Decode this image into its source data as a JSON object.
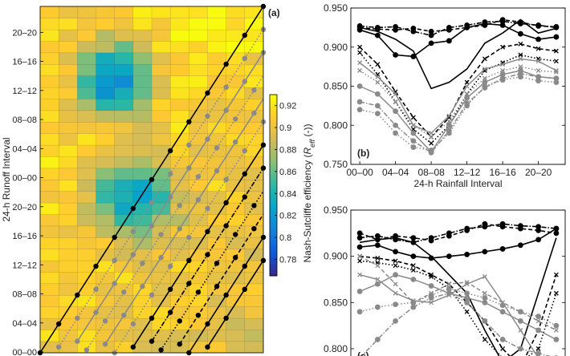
{
  "colors": {
    "colormap": [
      "#352a87",
      "#0f5cdd",
      "#1481d6",
      "#06a4ca",
      "#2eb7a4",
      "#87bf77",
      "#d1bb59",
      "#fec832",
      "#f9fb0e"
    ],
    "black": "#000000",
    "gray": "#8a8a8a"
  },
  "chart_data": [
    {
      "id": "a",
      "type": "heatmap",
      "panel_label": "(a)",
      "ylabel": "24-h Runoff Interval",
      "yticks": [
        "00–00",
        "04–04",
        "08–08",
        "12–12",
        "16–16",
        "20–20",
        "00–00",
        "04–04",
        "08–08",
        "12–12",
        "16–16",
        "20–20"
      ],
      "colorbar": {
        "label": "Nash-Sutcliffe efficiency (R_eff (-))",
        "label_parts": [
          "Nash-Sutcliffe efficiency (",
          "R",
          "eff",
          " (-))"
        ],
        "min": 0.765,
        "max": 0.93,
        "ticks": [
          "0.92",
          "0.9",
          "0.88",
          "0.86",
          "0.84",
          "0.82",
          "0.8",
          "0.78"
        ]
      },
      "rows": 30,
      "cols": 12,
      "rows_visible": 30,
      "diagonals": [
        {
          "offset": 0,
          "style": "solid",
          "color": "black"
        },
        {
          "offset": -2,
          "style": "dotted",
          "color": "gray"
        },
        {
          "offset": -4,
          "style": "solid",
          "color": "gray"
        },
        {
          "offset": -6,
          "style": "dotted",
          "color": "gray"
        },
        {
          "offset": -8,
          "style": "solid",
          "color": "gray"
        },
        {
          "offset": -10,
          "style": "dotted",
          "color": "gray"
        },
        {
          "offset": -12,
          "style": "solid",
          "color": "black"
        },
        {
          "offset": -14,
          "style": "dashdot",
          "color": "black"
        },
        {
          "offset": -16,
          "style": "dotted",
          "color": "black"
        },
        {
          "offset": -18,
          "style": "dashed",
          "color": "black"
        },
        {
          "offset": -20,
          "style": "solid",
          "color": "black"
        },
        {
          "offset": -22,
          "style": "solid",
          "color": "black"
        }
      ]
    },
    {
      "id": "b",
      "type": "line",
      "panel_label": "(b)",
      "xlabel": "24-h Rainfall Interval",
      "ylabel": "",
      "xticks": [
        "00–00",
        "04–04",
        "08–08",
        "12–12",
        "16–16",
        "20–20"
      ],
      "x": [
        0,
        1,
        2,
        3,
        4,
        5,
        6,
        7,
        8,
        9,
        10,
        11
      ],
      "ylim": [
        0.75,
        0.95
      ],
      "yticks": [
        "0.750",
        "0.800",
        "0.850",
        "0.900",
        "0.950"
      ],
      "series": [
        {
          "style": "solid",
          "color": "black",
          "marker": "circle",
          "values": [
            0.922,
            0.915,
            0.89,
            0.888,
            0.905,
            0.908,
            0.925,
            0.93,
            0.928,
            0.917,
            0.91,
            0.913
          ]
        },
        {
          "style": "solid",
          "color": "black",
          "marker": "none",
          "values": [
            0.925,
            0.92,
            0.91,
            0.895,
            0.847,
            0.855,
            0.872,
            0.905,
            0.918,
            0.935,
            0.918,
            0.924
          ]
        },
        {
          "style": "dashdot",
          "color": "black",
          "marker": "circle",
          "values": [
            0.927,
            0.925,
            0.926,
            0.92,
            0.915,
            0.925,
            0.928,
            0.932,
            0.933,
            0.93,
            0.928,
            0.925
          ]
        },
        {
          "style": "dashed",
          "color": "black",
          "marker": "circle",
          "values": [
            0.925,
            0.923,
            0.922,
            0.924,
            0.92,
            0.922,
            0.925,
            0.928,
            0.935,
            0.932,
            0.927,
            0.926
          ]
        },
        {
          "style": "dashed",
          "color": "black",
          "marker": "cross",
          "values": [
            0.9,
            0.878,
            0.843,
            0.81,
            0.785,
            0.81,
            0.855,
            0.885,
            0.9,
            0.904,
            0.898,
            0.895
          ]
        },
        {
          "style": "dotted",
          "color": "black",
          "marker": "cross",
          "values": [
            0.893,
            0.865,
            0.83,
            0.795,
            0.777,
            0.8,
            0.84,
            0.87,
            0.88,
            0.89,
            0.885,
            0.882
          ]
        },
        {
          "style": "solid",
          "color": "gray",
          "marker": "cross",
          "values": [
            0.88,
            0.862,
            0.84,
            0.8,
            0.79,
            0.812,
            0.85,
            0.872,
            0.878,
            0.885,
            0.882,
            0.87
          ]
        },
        {
          "style": "dotted",
          "color": "gray",
          "marker": "cross",
          "values": [
            0.87,
            0.855,
            0.83,
            0.8,
            0.785,
            0.805,
            0.84,
            0.86,
            0.87,
            0.875,
            0.87,
            0.868
          ]
        },
        {
          "style": "solid",
          "color": "gray",
          "marker": "circle",
          "values": [
            0.85,
            0.84,
            0.818,
            0.79,
            0.766,
            0.8,
            0.835,
            0.855,
            0.865,
            0.87,
            0.862,
            0.86
          ]
        },
        {
          "style": "dotted",
          "color": "gray",
          "marker": "circle",
          "values": [
            0.82,
            0.815,
            0.79,
            0.772,
            0.768,
            0.79,
            0.825,
            0.85,
            0.858,
            0.862,
            0.857,
            0.855
          ]
        },
        {
          "style": "dashdot",
          "color": "gray",
          "marker": "circle",
          "values": [
            0.83,
            0.825,
            0.8,
            0.78,
            0.765,
            0.793,
            0.828,
            0.848,
            0.86,
            0.866,
            0.862,
            0.86
          ]
        }
      ]
    },
    {
      "id": "c",
      "type": "line",
      "panel_label": "(c)",
      "xlabel": "",
      "ylabel": "",
      "x": [
        0,
        1,
        2,
        3,
        4,
        5,
        6,
        7,
        8,
        9,
        10,
        11
      ],
      "ylim": [
        0.78,
        0.95
      ],
      "yticks": [
        "0.800",
        "0.850",
        "0.900",
        "0.950"
      ],
      "series": [
        {
          "style": "solid",
          "color": "black",
          "marker": "circle",
          "values": [
            0.91,
            0.912,
            0.905,
            0.9,
            0.898,
            0.9,
            0.902,
            0.905,
            0.908,
            0.912,
            0.918,
            0.93
          ]
        },
        {
          "style": "dashdot",
          "color": "black",
          "marker": "circle",
          "values": [
            0.92,
            0.922,
            0.918,
            0.915,
            0.92,
            0.925,
            0.93,
            0.932,
            0.935,
            0.933,
            0.932,
            0.93
          ]
        },
        {
          "style": "dashed",
          "color": "black",
          "marker": "circle",
          "values": [
            0.925,
            0.918,
            0.922,
            0.92,
            0.917,
            0.922,
            0.928,
            0.935,
            0.932,
            0.93,
            0.928,
            0.925
          ]
        },
        {
          "style": "solid",
          "color": "black",
          "marker": "none",
          "values": [
            0.915,
            0.918,
            0.92,
            0.915,
            0.9,
            0.88,
            0.86,
            0.82,
            0.785,
            0.8,
            0.86,
            0.92
          ]
        },
        {
          "style": "dashed",
          "color": "black",
          "marker": "cross",
          "values": [
            0.9,
            0.898,
            0.895,
            0.89,
            0.88,
            0.87,
            0.85,
            0.83,
            0.8,
            0.78,
            0.82,
            0.88
          ]
        },
        {
          "style": "dotted",
          "color": "black",
          "marker": "cross",
          "values": [
            0.895,
            0.893,
            0.89,
            0.885,
            0.878,
            0.865,
            0.84,
            0.81,
            0.79,
            0.785,
            0.8,
            0.86
          ]
        },
        {
          "style": "dashed",
          "color": "gray",
          "marker": "cross",
          "values": [
            0.9,
            0.89,
            0.87,
            0.85,
            0.86,
            0.87,
            0.872,
            0.86,
            0.85,
            0.84,
            0.83,
            0.82
          ]
        },
        {
          "style": "solid",
          "color": "gray",
          "marker": "circle",
          "values": [
            0.862,
            0.87,
            0.88,
            0.875,
            0.868,
            0.86,
            0.855,
            0.85,
            0.84,
            0.83,
            0.82,
            0.81
          ]
        },
        {
          "style": "dotted",
          "color": "gray",
          "marker": "circle",
          "values": [
            0.84,
            0.845,
            0.848,
            0.85,
            0.858,
            0.865,
            0.86,
            0.855,
            0.847,
            0.84,
            0.835,
            0.825
          ]
        },
        {
          "style": "solid",
          "color": "gray",
          "marker": "cross",
          "values": [
            0.88,
            0.875,
            0.86,
            0.852,
            0.85,
            0.858,
            0.87,
            0.878,
            0.85,
            0.82,
            0.79,
            0.78
          ]
        },
        {
          "style": "dashdot",
          "color": "gray",
          "marker": "circle",
          "values": [
            0.79,
            0.81,
            0.83,
            0.845,
            0.855,
            0.86,
            0.85,
            0.83,
            0.81,
            0.8,
            0.795,
            0.79
          ]
        }
      ]
    }
  ]
}
